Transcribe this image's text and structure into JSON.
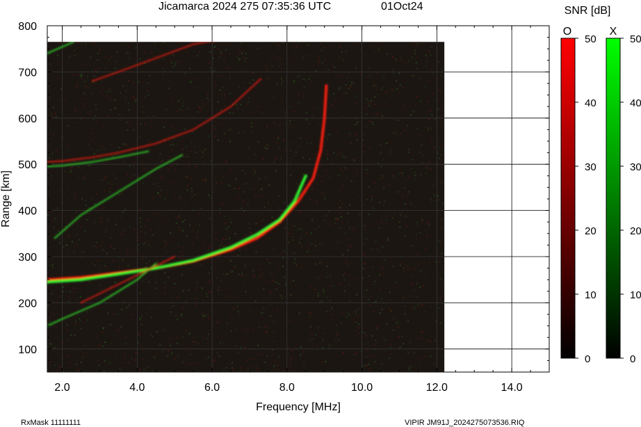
{
  "header": {
    "title": "Jicamarca 2024 275 07:35:36 UTC",
    "date": "01Oct24"
  },
  "footer": {
    "rxmask": "RxMask 11111111",
    "filename": "VIPIR  JM91J_2024275073536.RIQ"
  },
  "colorbar": {
    "title": "SNR [dB]",
    "o_label": "O",
    "x_label": "X",
    "ticks": [
      "0",
      "10",
      "20",
      "30",
      "40",
      "50"
    ],
    "o_color": "#ff0000",
    "x_color": "#00ff00"
  },
  "chart_data": {
    "type": "heatmap",
    "title": "Jicamarca 2024 275 07:35:36 UTC",
    "xlabel": "Frequency [MHz]",
    "ylabel": "Range [km]",
    "xlim": [
      1.6,
      15.0
    ],
    "ylim": [
      50,
      800
    ],
    "xticks": [
      "2.0",
      "4.0",
      "6.0",
      "8.0",
      "10.0",
      "12.0",
      "14.0"
    ],
    "yticks": [
      "100",
      "200",
      "300",
      "400",
      "500",
      "600",
      "700",
      "800"
    ],
    "data_extent": {
      "freq_max": 12.2,
      "range_max": 765
    },
    "snr_range_db": [
      0,
      50
    ],
    "traces": [
      {
        "name": "O",
        "color": "#ff2010",
        "freq": [
          1.6,
          2.5,
          3.5,
          4.5,
          5.5,
          6.5,
          7.2,
          7.8,
          8.3,
          8.7,
          8.9,
          9.0,
          9.05
        ],
        "range": [
          250,
          255,
          265,
          275,
          290,
          315,
          340,
          375,
          420,
          470,
          530,
          600,
          670
        ]
      },
      {
        "name": "X",
        "color": "#30ff30",
        "freq": [
          1.6,
          2.5,
          3.5,
          4.5,
          5.5,
          6.5,
          7.2,
          7.8,
          8.2,
          8.5
        ],
        "range": [
          245,
          250,
          262,
          275,
          292,
          320,
          348,
          380,
          420,
          475
        ]
      },
      {
        "name": "O",
        "color": "#ff2010",
        "freq": [
          1.6,
          2.0,
          2.8,
          3.5,
          4.5,
          5.5,
          6.5,
          7.3
        ],
        "range": [
          505,
          507,
          515,
          525,
          545,
          575,
          625,
          685
        ]
      },
      {
        "name": "X",
        "color": "#30ff30",
        "freq": [
          1.6,
          2.0,
          2.8,
          3.5,
          4.3
        ],
        "range": [
          495,
          497,
          505,
          515,
          528
        ]
      },
      {
        "name": "X",
        "color": "#30ff30",
        "freq": [
          1.6,
          2.0,
          3.0,
          4.0,
          4.5
        ],
        "range": [
          150,
          165,
          200,
          250,
          285
        ]
      },
      {
        "name": "O",
        "color": "#ff2010",
        "freq": [
          2.5,
          3.5,
          4.5,
          5.0
        ],
        "range": [
          200,
          240,
          280,
          300
        ]
      },
      {
        "name": "X",
        "color": "#30ff30",
        "freq": [
          1.8,
          2.5,
          3.5,
          4.5,
          5.2
        ],
        "range": [
          340,
          390,
          440,
          490,
          520
        ]
      },
      {
        "name": "X",
        "color": "#30ff30",
        "freq": [
          1.6,
          2.3
        ],
        "range": [
          740,
          765
        ]
      },
      {
        "name": "O",
        "color": "#ff2010",
        "freq": [
          2.8,
          3.5,
          4.5,
          5.5,
          6.2
        ],
        "range": [
          680,
          700,
          730,
          760,
          770
        ]
      }
    ]
  }
}
